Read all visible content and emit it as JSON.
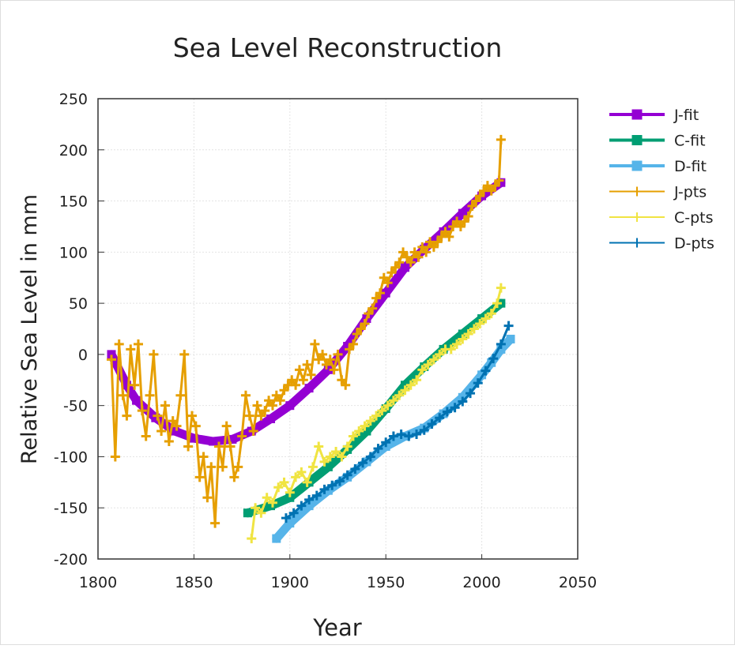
{
  "chart_data": {
    "type": "line",
    "title": "Sea Level Reconstruction",
    "xlabel": "Year",
    "ylabel": "Relative Sea Level in mm",
    "xlim": [
      1800,
      2050
    ],
    "ylim": [
      -200,
      250
    ],
    "xticks": [
      1800,
      1850,
      1900,
      1950,
      2000,
      2050
    ],
    "yticks": [
      -200,
      -150,
      -100,
      -50,
      0,
      50,
      100,
      150,
      200,
      250
    ],
    "grid": true,
    "legend_position": "outside-right",
    "series": [
      {
        "name": "J-fit",
        "color": "#9400d3",
        "style": "fit",
        "x": [
          1807,
          1815,
          1820,
          1830,
          1840,
          1850,
          1860,
          1870,
          1880,
          1890,
          1900,
          1910,
          1920,
          1930,
          1940,
          1950,
          1960,
          1970,
          1980,
          1990,
          2000,
          2010
        ],
        "y": [
          0,
          -30,
          -45,
          -62,
          -75,
          -82,
          -85,
          -83,
          -75,
          -63,
          -50,
          -33,
          -15,
          8,
          35,
          60,
          85,
          103,
          120,
          138,
          155,
          168
        ]
      },
      {
        "name": "C-fit",
        "color": "#009e73",
        "style": "fit",
        "x": [
          1878,
          1890,
          1900,
          1910,
          1920,
          1930,
          1940,
          1950,
          1960,
          1970,
          1980,
          1990,
          2000,
          2010
        ],
        "y": [
          -155,
          -148,
          -140,
          -125,
          -110,
          -93,
          -75,
          -53,
          -30,
          -12,
          5,
          20,
          35,
          50
        ]
      },
      {
        "name": "D-fit",
        "color": "#56b4e9",
        "style": "fit",
        "x": [
          1893,
          1900,
          1910,
          1920,
          1930,
          1940,
          1950,
          1960,
          1970,
          1980,
          1990,
          2000,
          2005,
          2010,
          2015
        ],
        "y": [
          -180,
          -165,
          -148,
          -133,
          -120,
          -105,
          -90,
          -80,
          -72,
          -58,
          -42,
          -20,
          -8,
          5,
          15
        ]
      },
      {
        "name": "J-pts",
        "color": "#e69f00",
        "style": "pts",
        "x": [
          1807,
          1809,
          1811,
          1813,
          1815,
          1817,
          1819,
          1821,
          1823,
          1825,
          1827,
          1829,
          1831,
          1833,
          1835,
          1837,
          1839,
          1841,
          1843,
          1845,
          1847,
          1849,
          1851,
          1853,
          1855,
          1857,
          1859,
          1861,
          1863,
          1865,
          1867,
          1869,
          1871,
          1873,
          1875,
          1877,
          1879,
          1881,
          1883,
          1885,
          1887,
          1889,
          1891,
          1893,
          1895,
          1897,
          1899,
          1901,
          1903,
          1905,
          1907,
          1909,
          1911,
          1913,
          1915,
          1917,
          1919,
          1921,
          1923,
          1925,
          1927,
          1929,
          1931,
          1933,
          1935,
          1937,
          1939,
          1941,
          1943,
          1945,
          1947,
          1949,
          1951,
          1953,
          1955,
          1957,
          1959,
          1961,
          1963,
          1965,
          1967,
          1969,
          1971,
          1973,
          1975,
          1977,
          1979,
          1981,
          1983,
          1985,
          1987,
          1989,
          1991,
          1993,
          1995,
          1997,
          1999,
          2001,
          2003,
          2005,
          2007,
          2009,
          2010
        ],
        "y": [
          -5,
          -100,
          10,
          -40,
          -60,
          5,
          -30,
          10,
          -55,
          -80,
          -40,
          0,
          -60,
          -75,
          -50,
          -85,
          -65,
          -70,
          -40,
          0,
          -90,
          -60,
          -70,
          -120,
          -100,
          -140,
          -110,
          -165,
          -90,
          -110,
          -70,
          -90,
          -120,
          -110,
          -80,
          -40,
          -60,
          -75,
          -50,
          -60,
          -55,
          -45,
          -50,
          -40,
          -45,
          -35,
          -30,
          -25,
          -30,
          -15,
          -25,
          -10,
          -20,
          10,
          -5,
          0,
          -10,
          -5,
          -15,
          0,
          -25,
          -30,
          5,
          10,
          20,
          25,
          30,
          40,
          45,
          55,
          60,
          75,
          70,
          80,
          85,
          90,
          100,
          95,
          90,
          100,
          95,
          105,
          100,
          110,
          105,
          110,
          115,
          120,
          115,
          125,
          130,
          125,
          130,
          135,
          145,
          150,
          155,
          160,
          165,
          160,
          165,
          170,
          210
        ]
      },
      {
        "name": "C-pts",
        "color": "#f0e442",
        "style": "pts",
        "x": [
          1880,
          1882,
          1885,
          1888,
          1891,
          1894,
          1897,
          1900,
          1903,
          1906,
          1909,
          1912,
          1915,
          1918,
          1921,
          1924,
          1927,
          1930,
          1933,
          1936,
          1939,
          1942,
          1945,
          1948,
          1951,
          1954,
          1957,
          1960,
          1963,
          1966,
          1969,
          1972,
          1975,
          1978,
          1981,
          1984,
          1987,
          1990,
          1993,
          1996,
          1999,
          2002,
          2005,
          2008,
          2010
        ],
        "y": [
          -180,
          -150,
          -155,
          -140,
          -145,
          -130,
          -125,
          -135,
          -120,
          -115,
          -125,
          -110,
          -90,
          -105,
          -100,
          -95,
          -100,
          -90,
          -80,
          -75,
          -70,
          -65,
          -60,
          -55,
          -50,
          -45,
          -40,
          -35,
          -30,
          -25,
          -15,
          -10,
          -5,
          0,
          5,
          5,
          10,
          15,
          20,
          25,
          30,
          35,
          40,
          50,
          65
        ]
      },
      {
        "name": "D-pts",
        "color": "#0072b2",
        "style": "pts",
        "x": [
          1898,
          1902,
          1906,
          1910,
          1914,
          1918,
          1922,
          1926,
          1930,
          1934,
          1938,
          1942,
          1946,
          1950,
          1954,
          1958,
          1962,
          1966,
          1970,
          1974,
          1978,
          1982,
          1986,
          1990,
          1994,
          1998,
          2002,
          2006,
          2010,
          2014
        ],
        "y": [
          -160,
          -155,
          -148,
          -142,
          -138,
          -132,
          -128,
          -124,
          -118,
          -112,
          -106,
          -100,
          -92,
          -86,
          -80,
          -78,
          -80,
          -78,
          -74,
          -68,
          -62,
          -56,
          -52,
          -46,
          -38,
          -28,
          -16,
          -4,
          10,
          28
        ]
      }
    ]
  }
}
